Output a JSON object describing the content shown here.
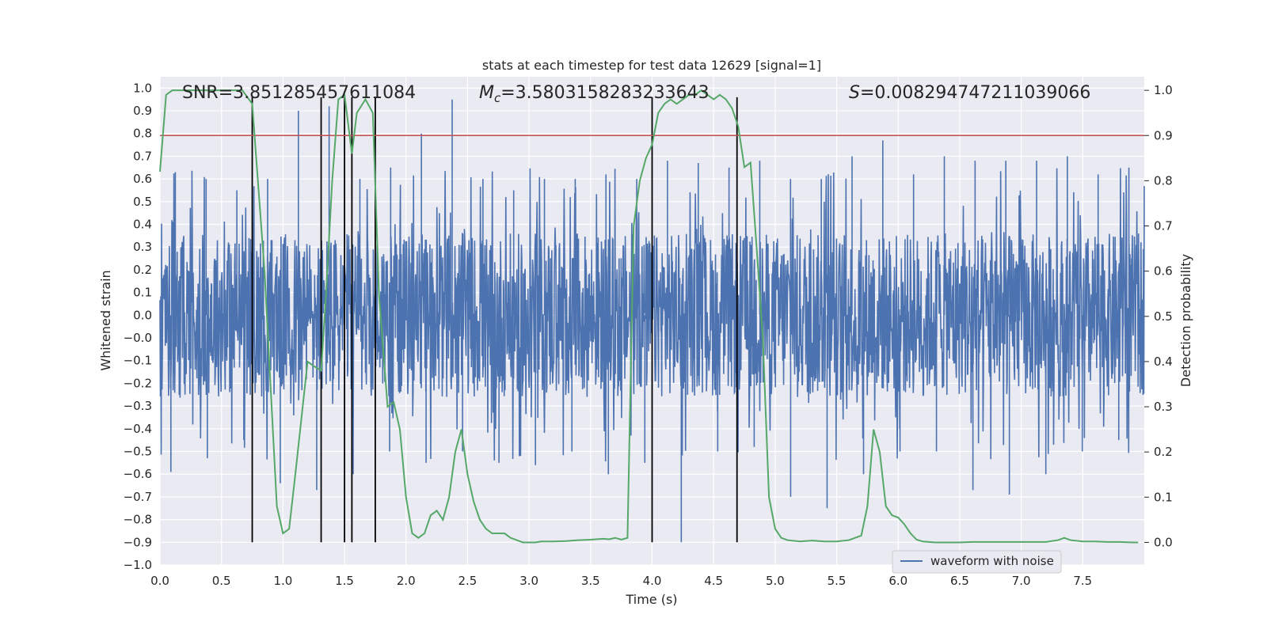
{
  "chart_data": {
    "type": "line",
    "title": "stats at each timestep for test data 12629 [signal=1]",
    "xlabel": "Time (s)",
    "ylabel_left": "Whitened strain",
    "ylabel_right": "Detection probability",
    "xlim": [
      0.0,
      8.0
    ],
    "ylim_left": [
      -1.1,
      1.05
    ],
    "ylim_right": [
      -0.05,
      1.03
    ],
    "x_ticks": [
      "0.0",
      "0.5",
      "1.0",
      "1.5",
      "2.0",
      "2.5",
      "3.0",
      "3.5",
      "4.0",
      "4.5",
      "5.0",
      "5.5",
      "6.0",
      "6.5",
      "7.0",
      "7.5"
    ],
    "y_left_ticks": [
      "1.0",
      "0.9",
      "0.8",
      "0.7",
      "0.6",
      "0.5",
      "0.4",
      "0.3",
      "0.2",
      "0.1",
      "0.0",
      "−0.0",
      "−0.1",
      "−0.2",
      "−0.3",
      "−0.4",
      "−0.5",
      "−0.6",
      "−0.7",
      "−0.8",
      "−0.9",
      "−1.0"
    ],
    "y_right_ticks": [
      "1.0",
      "0.9",
      "0.8",
      "0.7",
      "0.6",
      "0.5",
      "0.4",
      "0.3",
      "0.2",
      "0.1",
      "0.0"
    ],
    "grid": true,
    "annotations": {
      "snr": "SNR=3.851285457611084",
      "mc_symbol": "M",
      "mc_sub": "c",
      "mc_value": "=3.5803158283233643",
      "s_symbol": "S",
      "s_value": "=0.008294747211039066"
    },
    "legend": {
      "location": "lower-right",
      "entries": [
        "waveform with noise"
      ]
    },
    "threshold_right": 0.9,
    "vertical_lines_x": [
      0.75,
      1.31,
      1.5,
      1.56,
      1.75,
      4.0,
      4.69
    ],
    "waveform_with_noise": {
      "color": "#4c72b0",
      "core_amplitude": 0.36,
      "spike_peaks_upper": [
        0.63,
        0.6,
        0.55,
        0.6,
        0.9,
        0.92,
        0.6,
        0.65,
        0.8,
        0.95,
        0.6,
        0.55,
        0.6,
        0.6,
        0.62,
        0.6,
        0.68,
        0.67,
        0.65,
        0.68,
        0.6,
        0.6,
        0.7,
        0.77,
        0.62,
        0.7,
        0.68,
        0.68,
        0.68,
        0.7,
        0.62,
        0.65
      ],
      "spike_peaks_lower": [
        -0.69,
        -0.63,
        -0.55,
        -0.74,
        -0.77,
        -0.7,
        -0.6,
        -0.65,
        -0.6,
        -0.65,
        -0.66,
        -0.6,
        -0.7,
        -0.65,
        -1.0,
        -0.6,
        -0.58,
        -0.8,
        -0.85,
        -0.7,
        -0.6,
        -0.6,
        -0.77,
        -0.79,
        -0.7,
        -0.6,
        -0.55
      ]
    },
    "detection_probability": {
      "color": "#55a868",
      "x": [
        0.0,
        0.05,
        0.1,
        0.2,
        0.3,
        0.4,
        0.5,
        0.6,
        0.67,
        0.75,
        0.85,
        0.95,
        1.0,
        1.05,
        1.1,
        1.2,
        1.25,
        1.31,
        1.35,
        1.4,
        1.45,
        1.5,
        1.56,
        1.6,
        1.67,
        1.73,
        1.78,
        1.85,
        1.9,
        1.95,
        2.0,
        2.05,
        2.1,
        2.15,
        2.2,
        2.25,
        2.3,
        2.35,
        2.4,
        2.45,
        2.5,
        2.55,
        2.6,
        2.65,
        2.7,
        2.75,
        2.8,
        2.85,
        2.9,
        2.95,
        3.0,
        3.05,
        3.1,
        3.2,
        3.3,
        3.4,
        3.5,
        3.6,
        3.65,
        3.7,
        3.75,
        3.8,
        3.85,
        3.9,
        3.95,
        4.0,
        4.05,
        4.1,
        4.15,
        4.2,
        4.25,
        4.3,
        4.35,
        4.4,
        4.45,
        4.5,
        4.55,
        4.6,
        4.65,
        4.7,
        4.75,
        4.8,
        4.85,
        4.9,
        4.95,
        5.0,
        5.05,
        5.1,
        5.2,
        5.3,
        5.4,
        5.5,
        5.6,
        5.65,
        5.7,
        5.75,
        5.8,
        5.85,
        5.9,
        5.95,
        6.0,
        6.05,
        6.1,
        6.15,
        6.2,
        6.25,
        6.3,
        6.4,
        6.5,
        6.6,
        6.7,
        6.8,
        6.9,
        7.0,
        7.1,
        7.2,
        7.3,
        7.35,
        7.4,
        7.5,
        7.6,
        7.7,
        7.8,
        7.9,
        7.95
      ],
      "y": [
        0.82,
        0.99,
        1.0,
        1.0,
        1.0,
        1.0,
        1.0,
        1.0,
        1.0,
        0.97,
        0.6,
        0.08,
        0.02,
        0.03,
        0.15,
        0.4,
        0.39,
        0.38,
        0.55,
        0.8,
        0.98,
        0.99,
        0.86,
        0.95,
        0.98,
        0.95,
        0.55,
        0.3,
        0.31,
        0.25,
        0.1,
        0.02,
        0.01,
        0.02,
        0.06,
        0.07,
        0.05,
        0.1,
        0.2,
        0.25,
        0.15,
        0.09,
        0.05,
        0.03,
        0.02,
        0.02,
        0.02,
        0.01,
        0.005,
        0.0,
        0.0,
        0.0,
        0.002,
        0.002,
        0.003,
        0.005,
        0.006,
        0.008,
        0.007,
        0.01,
        0.006,
        0.01,
        0.7,
        0.8,
        0.85,
        0.88,
        0.95,
        0.97,
        0.98,
        0.97,
        0.98,
        0.99,
        0.99,
        1.0,
        0.99,
        0.98,
        0.99,
        0.98,
        0.96,
        0.92,
        0.83,
        0.84,
        0.65,
        0.45,
        0.1,
        0.03,
        0.01,
        0.005,
        0.002,
        0.004,
        0.002,
        0.002,
        0.005,
        0.01,
        0.015,
        0.08,
        0.25,
        0.2,
        0.08,
        0.06,
        0.055,
        0.04,
        0.02,
        0.006,
        0.002,
        0.001,
        0.0,
        0.0,
        0.0,
        0.001,
        0.001,
        0.001,
        0.001,
        0.001,
        0.001,
        0.001,
        0.005,
        0.01,
        0.005,
        0.002,
        0.002,
        0.001,
        0.001,
        0.0,
        0.0
      ]
    }
  }
}
